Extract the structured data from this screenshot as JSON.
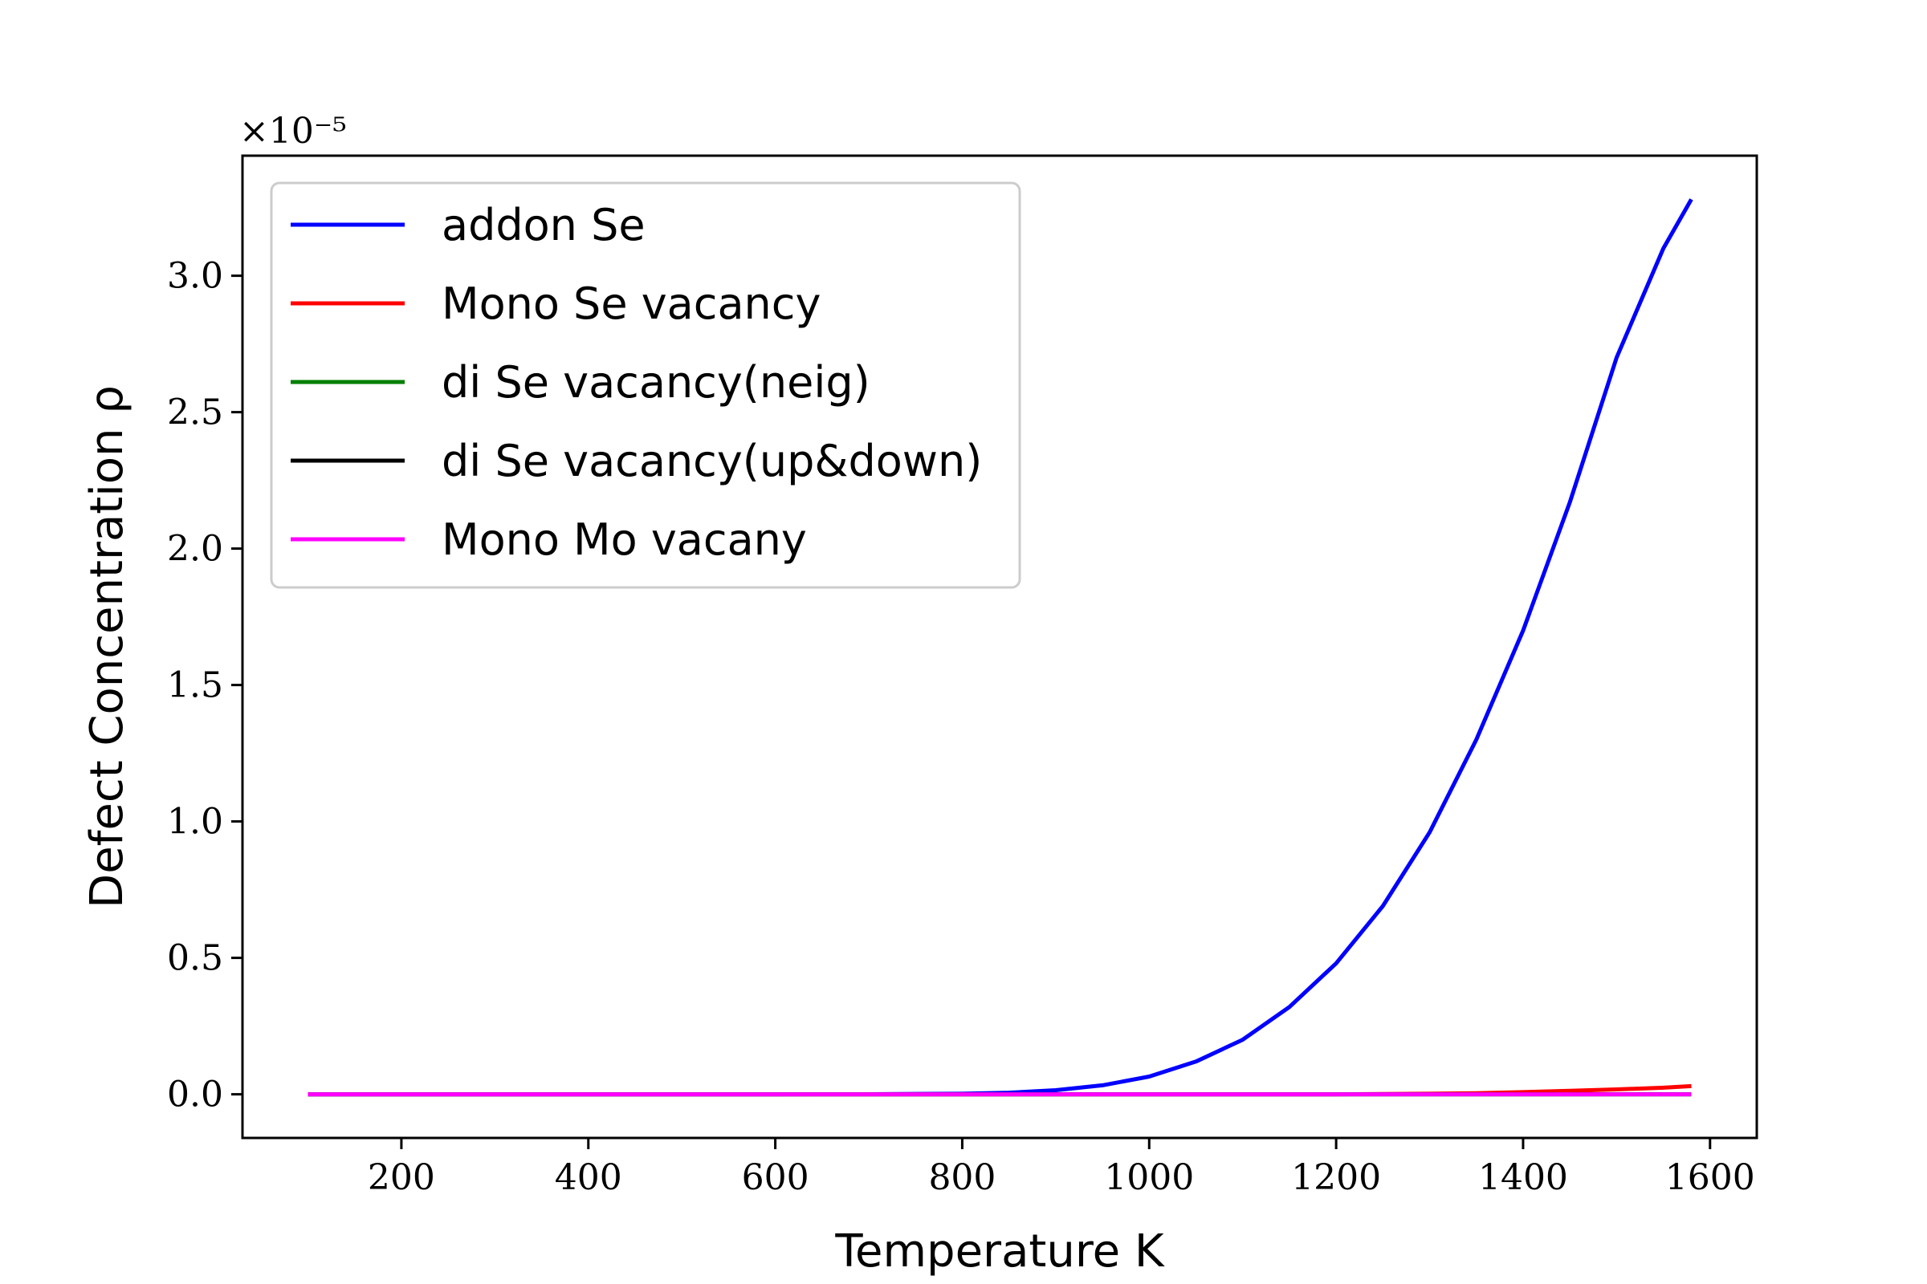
{
  "chart_data": {
    "type": "line",
    "title": "",
    "xlabel": "Temperature K",
    "ylabel": "Defect Concentration ρ",
    "y_offset_label": "×10⁻⁵",
    "xlim": [
      30,
      1650
    ],
    "ylim": [
      -0.16,
      3.44
    ],
    "xticks": [
      200,
      400,
      600,
      800,
      1000,
      1200,
      1400,
      1600
    ],
    "xtick_labels": [
      "200",
      "400",
      "600",
      "800",
      "1000",
      "1200",
      "1400",
      "1600"
    ],
    "yticks": [
      0.0,
      0.5,
      1.0,
      1.5,
      2.0,
      2.5,
      3.0
    ],
    "ytick_labels": [
      "0.0",
      "0.5",
      "1.0",
      "1.5",
      "2.0",
      "2.5",
      "3.0"
    ],
    "grid": false,
    "legend_position": "top-left",
    "x": [
      100,
      200,
      300,
      400,
      500,
      600,
      700,
      800,
      850,
      900,
      950,
      1000,
      1050,
      1100,
      1150,
      1200,
      1250,
      1300,
      1350,
      1400,
      1450,
      1500,
      1550,
      1580
    ],
    "series": [
      {
        "name": "addon Se",
        "color": "#0000ff",
        "values": [
          0,
          0,
          0,
          0,
          0,
          0,
          0.0002,
          0.002,
          0.006,
          0.015,
          0.033,
          0.065,
          0.12,
          0.2,
          0.32,
          0.48,
          0.69,
          0.96,
          1.3,
          1.7,
          2.17,
          2.7,
          3.1,
          3.28
        ]
      },
      {
        "name": "Mono Se vacancy",
        "color": "#ff0000",
        "values": [
          0,
          0,
          0,
          0,
          0,
          0,
          0,
          0,
          0,
          0,
          0,
          0,
          0,
          0,
          0,
          0,
          0.001,
          0.002,
          0.004,
          0.008,
          0.013,
          0.018,
          0.024,
          0.03
        ]
      },
      {
        "name": "di Se vacancy(neig)",
        "color": "#008000",
        "values": [
          0,
          0,
          0,
          0,
          0,
          0,
          0,
          0,
          0,
          0,
          0,
          0,
          0,
          0,
          0,
          0,
          0,
          0,
          0,
          0,
          0,
          0,
          0,
          0
        ]
      },
      {
        "name": "di Se vacancy(up&down)",
        "color": "#000000",
        "values": [
          0,
          0,
          0,
          0,
          0,
          0,
          0,
          0,
          0,
          0,
          0,
          0,
          0,
          0,
          0,
          0,
          0,
          0,
          0,
          0,
          0,
          0,
          0,
          0
        ]
      },
      {
        "name": "Mono Mo vacany",
        "color": "#ff00ff",
        "values": [
          0,
          0,
          0,
          0,
          0,
          0,
          0,
          0,
          0,
          0,
          0,
          0,
          0,
          0,
          0,
          0,
          0,
          0,
          0,
          0,
          0,
          0,
          0,
          0
        ]
      }
    ]
  }
}
